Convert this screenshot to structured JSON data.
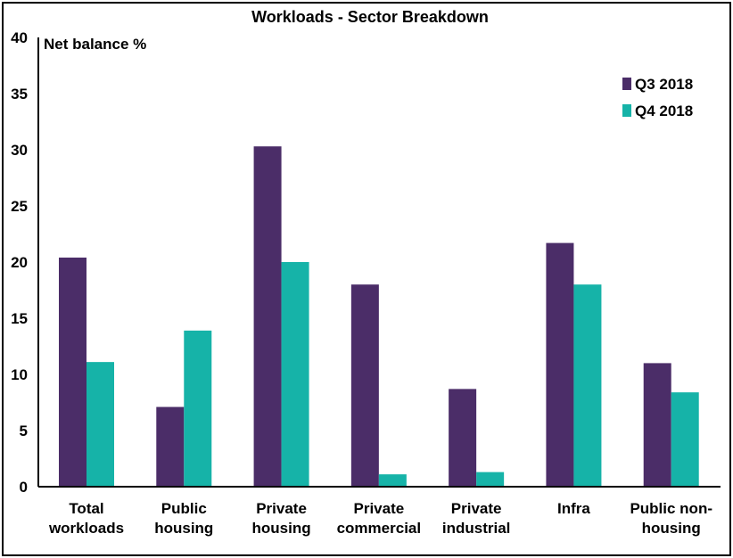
{
  "chart_data": {
    "type": "bar",
    "title": "Workloads - Sector Breakdown",
    "ylabel": "Net balance %",
    "xlabel": "",
    "ylim": [
      0,
      40
    ],
    "yticks": [
      "0",
      "5",
      "10",
      "15",
      "20",
      "25",
      "30",
      "35",
      "40"
    ],
    "categories": [
      [
        "Total",
        "workloads"
      ],
      [
        "Public",
        "housing"
      ],
      [
        "Private",
        "housing"
      ],
      [
        "Private",
        "commercial"
      ],
      [
        "Private",
        "industrial"
      ],
      [
        "Infra"
      ],
      [
        "Public non-",
        "housing"
      ]
    ],
    "series": [
      {
        "name": "Q3 2018",
        "color": "#4b2d68",
        "values": [
          20.4,
          7.1,
          30.3,
          18.0,
          8.7,
          21.7,
          11.0
        ]
      },
      {
        "name": "Q4 2018",
        "color": "#16b3a8",
        "values": [
          11.1,
          13.9,
          20.0,
          1.1,
          1.3,
          18.0,
          8.4
        ]
      }
    ],
    "legend": "top-right",
    "grid": false
  }
}
